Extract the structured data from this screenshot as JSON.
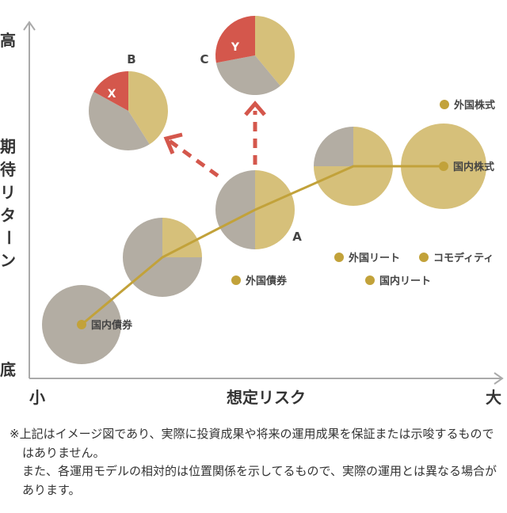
{
  "axes": {
    "y_high": "高",
    "y_low": "底",
    "y_title": [
      "期",
      "待",
      "リ",
      "タ",
      "ー",
      "ン"
    ],
    "x_low": "小",
    "x_high": "大",
    "x_title": "想定リスク"
  },
  "pies": [
    {
      "label": "",
      "fraction": 0,
      "fill": "#b3ada3"
    },
    {
      "label": "",
      "fraction": 0.25,
      "fill": "#b3ada3"
    },
    {
      "label": "A",
      "fraction": 0.5,
      "fill": "#b3ada3"
    },
    {
      "label": "",
      "fraction": 0.75,
      "fill": "#b3ada3"
    },
    {
      "label": "",
      "fraction": 1,
      "fill": "#b3ada3"
    },
    {
      "label": "B",
      "gray": 0.42,
      "red": 0.17,
      "marker": "X"
    },
    {
      "label": "C",
      "gray": 0.33,
      "red": 0.28,
      "marker": "Y"
    }
  ],
  "asset_labels": {
    "domestic_bond": "国内債券",
    "foreign_bond": "外国債券",
    "foreign_reit": "外国リート",
    "commodity": "コモディティ",
    "domestic_reit": "国内リート",
    "foreign_stock": "外国株式",
    "domestic_stock": "国内株式"
  },
  "colors": {
    "gold": "#d6c07a",
    "line": "#c2a23a",
    "gray": "#b3ada3",
    "red": "#d4574c",
    "axis": "#aaaaaa",
    "arrow": "#d4574c"
  },
  "note": {
    "line1": "※上記はイメージ図であり、実際に投資成果や将来の運用成果を保証または示唆するものではありません。",
    "line2": "また、各運用モデルの相対的は位置関係を示してるもので、実際の運用とは異なる場合があります。"
  }
}
